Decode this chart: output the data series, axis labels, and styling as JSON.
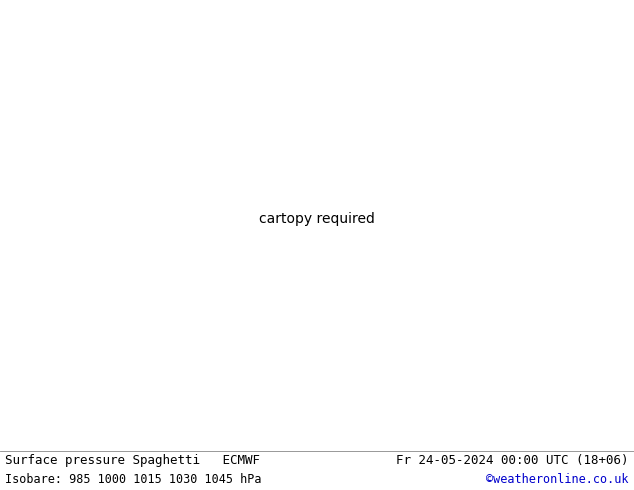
{
  "title_left": "Surface pressure Spaghetti   ECMWF",
  "title_right": "Fr 24-05-2024 00:00 UTC (18+06)",
  "subtitle_left": "Isobare: 985 1000 1015 1030 1045 hPa",
  "subtitle_right": "©weatheronline.co.uk",
  "subtitle_right_color": "#0000cc",
  "background_color": "#ffffff",
  "land_color": "#c8e8c8",
  "sea_color": "#e8e8f0",
  "border_color": "#888888",
  "coast_color": "#888888",
  "text_color": "#000000",
  "font_size_title": 9,
  "font_size_subtitle": 8.5,
  "dpi": 100,
  "figsize": [
    6.34,
    4.9
  ],
  "map_extent": [
    -60,
    50,
    25,
    75
  ],
  "n_members": 51,
  "ensemble_colors": [
    "#ff0000",
    "#ff3300",
    "#ff6600",
    "#ff9900",
    "#ffcc00",
    "#ffff00",
    "#ccff00",
    "#99ff00",
    "#66ff00",
    "#33ff00",
    "#00ff00",
    "#00ff33",
    "#00ff66",
    "#00ff99",
    "#00ffcc",
    "#00ffff",
    "#00ccff",
    "#0099ff",
    "#0066ff",
    "#0033ff",
    "#0000ff",
    "#3300ff",
    "#6600ff",
    "#9900ff",
    "#cc00ff",
    "#ff00ff",
    "#ff00cc",
    "#ff0099",
    "#ff0066",
    "#ff0033",
    "#880000",
    "#884400",
    "#888800",
    "#448800",
    "#008800",
    "#004488",
    "#000088",
    "#440088",
    "#880044",
    "#008844",
    "#884488",
    "#448844",
    "#448888",
    "#884444",
    "#444488",
    "#cc4400",
    "#00cc44",
    "#4400cc",
    "#44cc00",
    "#cc0044",
    "#666666"
  ]
}
